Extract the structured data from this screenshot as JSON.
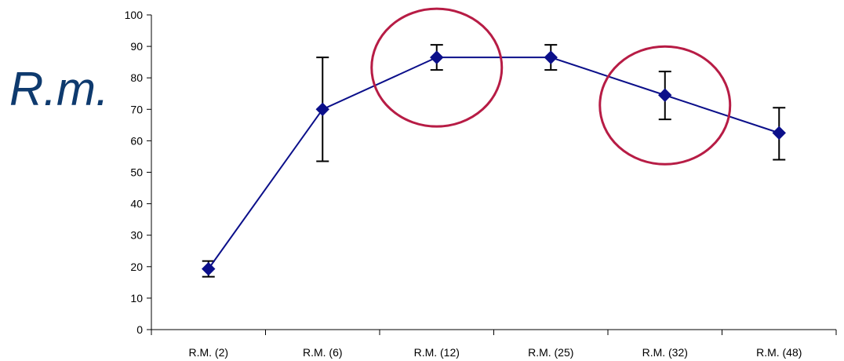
{
  "side_title": "R.m.",
  "colors": {
    "series": "#0b0f8a",
    "error_bar": "#000000",
    "highlight_circle": "#b71c45",
    "axis": "#000000"
  },
  "chart_data": {
    "type": "line",
    "title": "",
    "xlabel": "",
    "ylabel": "",
    "categories": [
      "R.M. (2)",
      "R.M. (6)",
      "R.M. (12)",
      "R.M. (25)",
      "R.M. (32)",
      "R.M. (48)"
    ],
    "ylim": [
      0,
      100
    ],
    "yticks": [
      0,
      10,
      20,
      30,
      40,
      50,
      60,
      70,
      80,
      90,
      100
    ],
    "grid": false,
    "legend": "none",
    "series": [
      {
        "values": [
          19.3,
          70,
          86.5,
          86.5,
          74.5,
          62.5
        ],
        "error_low": [
          16.8,
          53.5,
          82.5,
          82.5,
          66.8,
          54
        ],
        "error_high": [
          21.8,
          86.5,
          90.5,
          90.5,
          82,
          70.5
        ],
        "marker": "diamond"
      }
    ],
    "highlighted_categories": [
      "R.M. (12)",
      "R.M. (32)"
    ]
  }
}
